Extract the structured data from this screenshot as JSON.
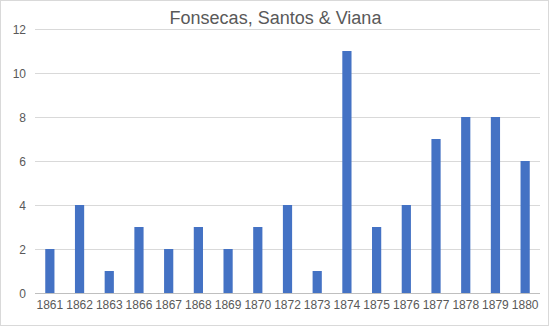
{
  "chart_data": {
    "type": "bar",
    "title": "Fonsecas, Santos & Viana",
    "categories": [
      "1861",
      "1862",
      "1863",
      "1866",
      "1867",
      "1868",
      "1869",
      "1870",
      "1872",
      "1873",
      "1874",
      "1875",
      "1876",
      "1877",
      "1878",
      "1879",
      "1880"
    ],
    "values": [
      2,
      4,
      1,
      3,
      2,
      3,
      2,
      3,
      4,
      1,
      11,
      3,
      4,
      7,
      8,
      8,
      6
    ],
    "color": "#4472c4",
    "ylim": [
      0,
      12
    ],
    "yticks": [
      0,
      2,
      4,
      6,
      8,
      10,
      12
    ],
    "grid": true
  }
}
